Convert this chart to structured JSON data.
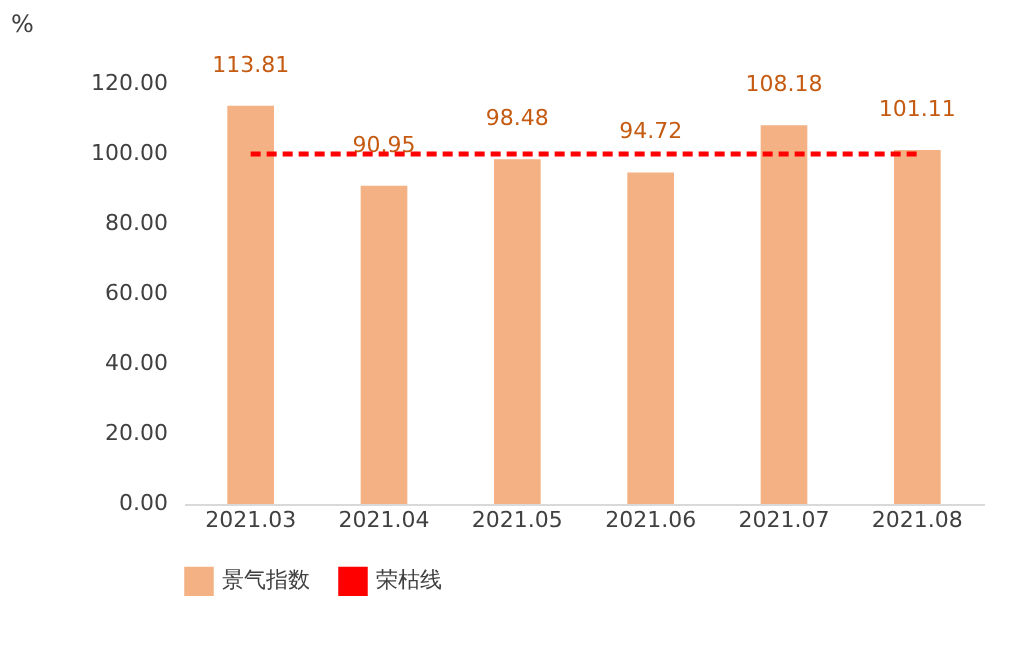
{
  "chart_data": {
    "type": "bar",
    "ylabel": "%",
    "categories": [
      "2021.03",
      "2021.04",
      "2021.05",
      "2021.06",
      "2021.07",
      "2021.08"
    ],
    "series": [
      {
        "name": "景气指数",
        "color": "#f4b183",
        "values": [
          113.81,
          90.95,
          98.48,
          94.72,
          108.18,
          101.11
        ],
        "value_labels": [
          "113.81",
          "90.95",
          "98.48",
          "94.72",
          "108.18",
          "101.11"
        ]
      },
      {
        "name": "荣枯线",
        "type": "line",
        "color": "#ff0000",
        "line_style": "dashed",
        "marker": "none",
        "values": [
          100,
          100,
          100,
          100,
          100,
          100
        ]
      }
    ],
    "ylim": [
      0,
      120
    ],
    "yticks": [
      {
        "value": 0,
        "label": "0.00"
      },
      {
        "value": 20,
        "label": "20.00"
      },
      {
        "value": 40,
        "label": "40.00"
      },
      {
        "value": 60,
        "label": "60.00"
      },
      {
        "value": 80,
        "label": "80.00"
      },
      {
        "value": 100,
        "label": "100.00"
      },
      {
        "value": 120,
        "label": "120.00"
      }
    ],
    "grid": false,
    "legend": "bottom"
  }
}
